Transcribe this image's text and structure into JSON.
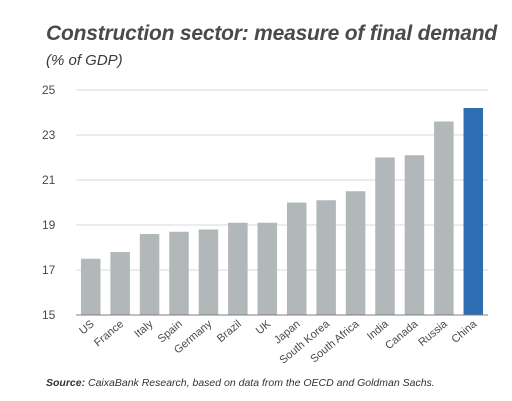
{
  "header": {
    "title": "Construction sector: measure of final demand",
    "subtitle": "(% of GDP)"
  },
  "footer": {
    "source_label": "Source:",
    "source_text": " CaixaBank Research, based on data from the OECD and Goldman Sachs."
  },
  "colors": {
    "bar": "#b2b7ba",
    "highlight": "#2f6db3",
    "grid": "#d9d9d9",
    "axis": "#7f7f7f"
  },
  "chart_data": {
    "type": "bar",
    "title": "Construction sector: measure of final demand",
    "subtitle": "(% of GDP)",
    "categories": [
      "US",
      "France",
      "Italy",
      "Spain",
      "Germany",
      "Brazil",
      "UK",
      "Japan",
      "South Korea",
      "South Africa",
      "India",
      "Canada",
      "Russia",
      "China"
    ],
    "values": [
      17.5,
      17.8,
      18.6,
      18.7,
      18.8,
      19.1,
      19.1,
      20.0,
      20.1,
      20.5,
      22.0,
      22.1,
      23.6,
      24.2
    ],
    "highlighted_category": "China",
    "ylim": [
      15,
      25
    ],
    "yticks": [
      15,
      17,
      19,
      21,
      23,
      25
    ],
    "xlabel": "",
    "ylabel": "",
    "grid": true
  }
}
